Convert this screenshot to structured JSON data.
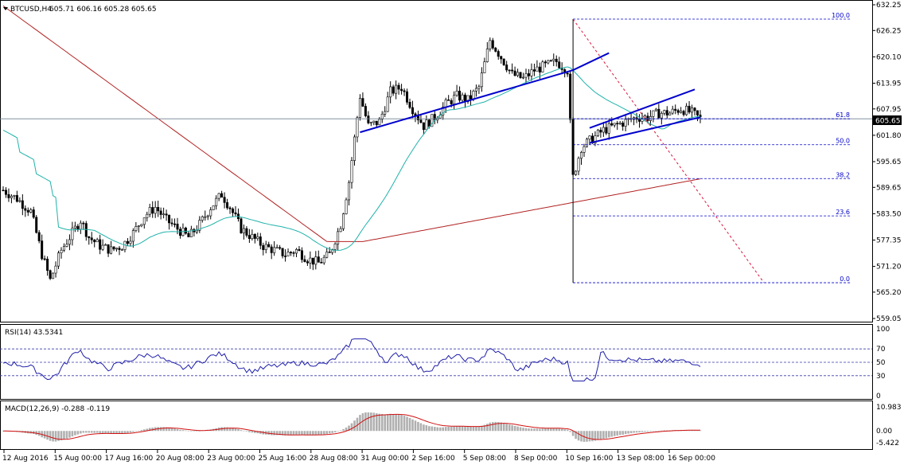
{
  "chart_data": [
    {
      "type": "candlestick",
      "header": {
        "symbol": "BTCUSD,H4",
        "values": "605.71 606.16 605.28 605.65"
      },
      "ylim": [
        559.05,
        632.25
      ],
      "y_ticks": [
        "632.25",
        "626.25",
        "620.10",
        "613.95",
        "607.95",
        "601.80",
        "595.65",
        "589.65",
        "583.50",
        "577.35",
        "571.20",
        "565.20",
        "559.05"
      ],
      "current_price": "605.65",
      "x_ticks": [
        "12 Aug 2016",
        "15 Aug 00:00",
        "17 Aug 16:00",
        "20 Aug 08:00",
        "23 Aug 00:00",
        "25 Aug 16:00",
        "28 Aug 08:00",
        "31 Aug 00:00",
        "2 Sep 16:00",
        "5 Sep 08:00",
        "8 Sep 00:00",
        "10 Sep 16:00",
        "13 Sep 08:00",
        "16 Sep 00:00"
      ],
      "close_path": [
        [
          0,
          589
        ],
        [
          5,
          587
        ],
        [
          10,
          584
        ],
        [
          14,
          574
        ],
        [
          17,
          568
        ],
        [
          21,
          575
        ],
        [
          25,
          579
        ],
        [
          28,
          582
        ],
        [
          31,
          578
        ],
        [
          35,
          576
        ],
        [
          39,
          575
        ],
        [
          43,
          576
        ],
        [
          47,
          579
        ],
        [
          51,
          583
        ],
        [
          55,
          585
        ],
        [
          59,
          582
        ],
        [
          63,
          580
        ],
        [
          67,
          578
        ],
        [
          71,
          581
        ],
        [
          75,
          585
        ],
        [
          79,
          588
        ],
        [
          82,
          585
        ],
        [
          86,
          580
        ],
        [
          90,
          578
        ],
        [
          94,
          576
        ],
        [
          98,
          575
        ],
        [
          102,
          574
        ],
        [
          106,
          575
        ],
        [
          110,
          573
        ],
        [
          114,
          572
        ],
        [
          118,
          574
        ],
        [
          122,
          581
        ],
        [
          125,
          591
        ],
        [
          129,
          611
        ],
        [
          132,
          604
        ],
        [
          136,
          605
        ],
        [
          140,
          612
        ],
        [
          144,
          613
        ],
        [
          148,
          608
        ],
        [
          152,
          604
        ],
        [
          156,
          606
        ],
        [
          160,
          609
        ],
        [
          164,
          611
        ],
        [
          168,
          610
        ],
        [
          172,
          613
        ],
        [
          176,
          624
        ],
        [
          180,
          620
        ],
        [
          184,
          616
        ],
        [
          188,
          615
        ],
        [
          192,
          617
        ],
        [
          196,
          618
        ],
        [
          200,
          619
        ],
        [
          204,
          617
        ],
        [
          206,
          592
        ],
        [
          209,
          599
        ],
        [
          213,
          601
        ],
        [
          217,
          603
        ],
        [
          221,
          604
        ],
        [
          225,
          605
        ],
        [
          229,
          606
        ],
        [
          233,
          606
        ],
        [
          237,
          607
        ],
        [
          241,
          607
        ],
        [
          245,
          608
        ],
        [
          249,
          607
        ],
        [
          252,
          605.65
        ]
      ],
      "fib_levels": [
        {
          "label": "100.0",
          "value": 628.9
        },
        {
          "label": "61.8",
          "value": 605.65
        },
        {
          "label": "50.0",
          "value": 599.6
        },
        {
          "label": "38.2",
          "value": 591.7
        },
        {
          "label": "23.6",
          "value": 583.0
        },
        {
          "label": "0.0",
          "value": 567.4
        }
      ],
      "indicators": [
        "MA slow (red)",
        "MA fast (teal)",
        "Fibonacci retracement",
        "trend lines"
      ],
      "colors": {
        "bull": "#000000",
        "bear": "#000000",
        "ma_slow": "#b22222",
        "ma_fast": "#20b2aa",
        "trend": "#0000cd",
        "fib": "#0000cc",
        "fib_diag": "#dc143c"
      },
      "grid": false
    },
    {
      "type": "line",
      "header": "RSI(14) 43.5341",
      "ylim": [
        0,
        100
      ],
      "y_ticks": [
        "100",
        "70",
        "50",
        "30",
        "0"
      ],
      "levels": [
        70,
        50,
        30
      ],
      "current": 43.5341
    },
    {
      "type": "bar",
      "header": "MACD(12,26,9) -0.288 -0.119",
      "y_ticks": [
        "10.983",
        "0.00",
        "-5.422"
      ],
      "ylim": [
        -7.5,
        12
      ]
    }
  ]
}
